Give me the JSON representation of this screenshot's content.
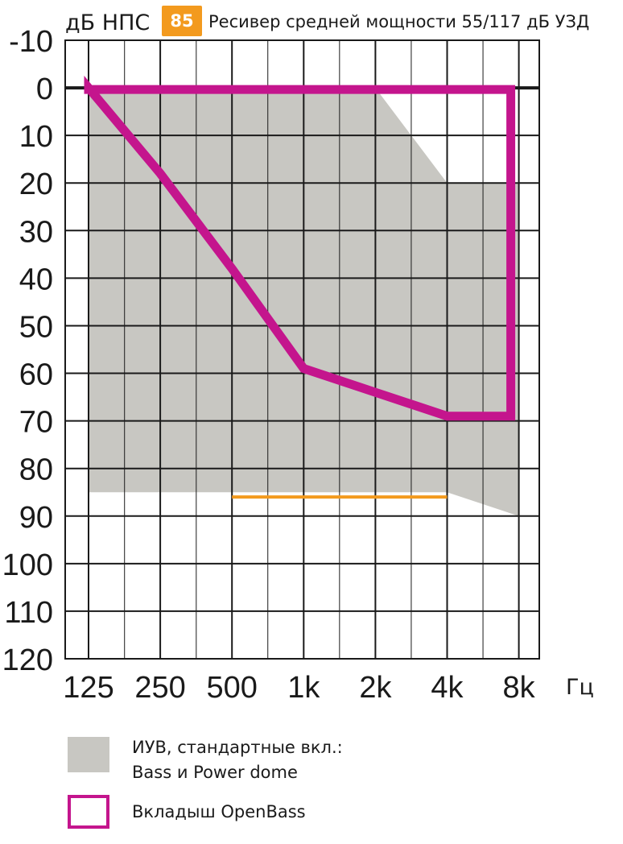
{
  "header": {
    "ylabel": "дБ НПС",
    "badge": "85",
    "title": "Ресивер средней мощности 55/117 дБ УЗД",
    "badge_color": "#f39a1e"
  },
  "chart_data": {
    "type": "area",
    "x_scale": "log2",
    "categories": [
      "125",
      "250",
      "500",
      "1k",
      "2k",
      "4k",
      "8k"
    ],
    "x_unit": "Гц",
    "y_ticks": [
      "-10",
      "0",
      "10",
      "20",
      "30",
      "40",
      "50",
      "60",
      "70",
      "80",
      "90",
      "100",
      "110",
      "120"
    ],
    "ylim": [
      -10,
      120
    ],
    "y_inverted": true,
    "series": [
      {
        "name": "ИУВ, стандартные вкл.: Bass и Power dome",
        "kind": "filled-area",
        "color": "#c8c7c2",
        "upper": [
          [
            125,
            0
          ],
          [
            2000,
            0
          ],
          [
            4000,
            20
          ],
          [
            8000,
            20
          ]
        ],
        "lower": [
          [
            125,
            85
          ],
          [
            4000,
            85
          ],
          [
            8000,
            90
          ]
        ]
      },
      {
        "name": "Вкладыш OpenBass",
        "kind": "outline",
        "color": "#c4158d",
        "upper": [
          [
            125,
            0
          ],
          [
            8000,
            0
          ]
        ],
        "lower": [
          [
            125,
            0
          ],
          [
            250,
            18
          ],
          [
            500,
            38
          ],
          [
            1000,
            59
          ],
          [
            2000,
            64
          ],
          [
            4000,
            69
          ],
          [
            8000,
            69
          ]
        ]
      },
      {
        "name": "85",
        "kind": "reference-line",
        "color": "#f39a1e",
        "points": [
          [
            500,
            86
          ],
          [
            4000,
            86
          ]
        ]
      }
    ]
  },
  "legend": {
    "items": [
      {
        "label": "ИУВ, стандартные вкл.:\nBass и Power dome",
        "swatch": "gray"
      },
      {
        "label": "Вкладыш OpenBass",
        "swatch": "outline"
      }
    ]
  }
}
